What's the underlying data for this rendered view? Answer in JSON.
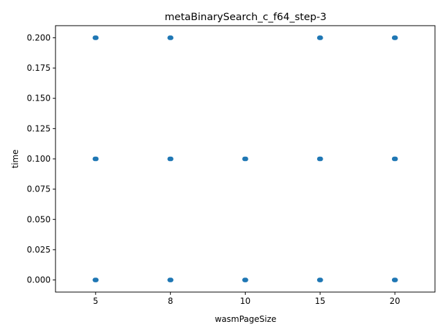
{
  "chart_data": {
    "type": "scatter",
    "title": "metaBinarySearch_c_f64_step-3",
    "xlabel": "wasmPageSize",
    "ylabel": "time",
    "x_categories": [
      "5",
      "8",
      "10",
      "15",
      "20"
    ],
    "y_ticks": [
      "0.000",
      "0.025",
      "0.050",
      "0.075",
      "0.100",
      "0.125",
      "0.150",
      "0.175",
      "0.200"
    ],
    "ylim": [
      -0.01,
      0.21
    ],
    "grid": false,
    "legend": "none",
    "marker_color": "#1f77b4",
    "points": [
      {
        "x": "5",
        "y": 0.2
      },
      {
        "x": "5",
        "y": 0.1
      },
      {
        "x": "5",
        "y": 0.0
      },
      {
        "x": "8",
        "y": 0.2
      },
      {
        "x": "8",
        "y": 0.1
      },
      {
        "x": "8",
        "y": 0.0
      },
      {
        "x": "10",
        "y": 0.1
      },
      {
        "x": "10",
        "y": 0.0
      },
      {
        "x": "15",
        "y": 0.2
      },
      {
        "x": "15",
        "y": 0.1
      },
      {
        "x": "15",
        "y": 0.0
      },
      {
        "x": "20",
        "y": 0.2
      },
      {
        "x": "20",
        "y": 0.1
      },
      {
        "x": "20",
        "y": 0.0
      }
    ]
  }
}
